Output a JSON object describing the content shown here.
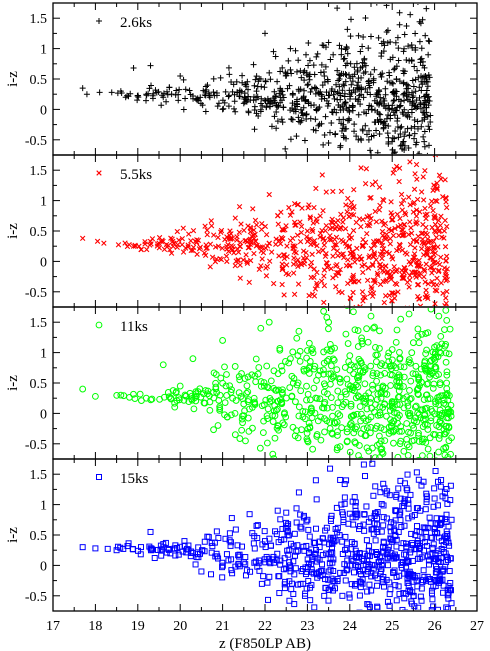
{
  "chart_data": [
    {
      "type": "scatter",
      "marker": "plus",
      "color": "#000000",
      "legend": "2.6ks",
      "ylabel": "i-z",
      "xlim": [
        17,
        27
      ],
      "ylim": [
        -0.75,
        1.75
      ],
      "yticks": [
        -0.5,
        0,
        0.5,
        1,
        1.5
      ],
      "series": [
        {
          "name": "2.6ks",
          "trend": [
            [
              17.7,
              0.28
            ],
            [
              19.0,
              0.25
            ],
            [
              20.5,
              0.22
            ],
            [
              22.0,
              0.21
            ],
            [
              24.0,
              0.2
            ],
            [
              26.0,
              0.18
            ]
          ],
          "scatter": [
            [
              17.7,
              0.0
            ],
            [
              18.1,
              0.0
            ],
            [
              18.7,
              0.05
            ],
            [
              22.0,
              0.2
            ],
            [
              23.0,
              0.35
            ],
            [
              24.0,
              0.5
            ],
            [
              25.0,
              0.6
            ],
            [
              26.0,
              0.8
            ]
          ],
          "x": [
            17.7,
            17.8,
            18.1,
            18.6,
            18.9,
            19.2,
            19.3,
            19.6,
            20.0,
            20.3,
            20.7,
            21.0,
            21.2,
            21.5,
            21.8,
            22.0,
            22.1,
            22.2,
            22.4,
            22.6,
            22.8,
            23.0,
            23.2,
            23.4,
            23.5,
            23.6,
            23.8,
            24.0,
            24.2,
            24.3,
            24.5,
            24.7,
            24.8,
            24.9,
            25.1,
            25.3,
            25.4,
            25.6,
            25.8,
            25.9
          ],
          "y": [
            0.35,
            0.25,
            0.28,
            0.3,
            0.68,
            0.25,
            0.72,
            0.2,
            0.55,
            0.22,
            0.2,
            0.0,
            0.45,
            0.1,
            0.3,
            1.25,
            0.6,
            0.95,
            0.15,
            1.0,
            -0.2,
            0.4,
            -0.35,
            0.55,
            1.1,
            -0.05,
            0.9,
            0.25,
            -0.5,
            0.7,
            1.2,
            0.1,
            -0.3,
            1.3,
            0.5,
            -0.6,
            0.8,
            -0.2,
            0.45,
            -0.1
          ]
        }
      ]
    },
    {
      "type": "scatter",
      "marker": "x",
      "color": "#ff0000",
      "legend": "5.5ks",
      "ylabel": "i-z",
      "xlim": [
        17,
        27
      ],
      "ylim": [
        -0.75,
        1.75
      ],
      "yticks": [
        -0.5,
        0,
        0.5,
        1,
        1.5
      ],
      "series": [
        {
          "name": "5.5ks",
          "trend": [
            [
              17.7,
              0.38
            ],
            [
              18.5,
              0.28
            ],
            [
              20.0,
              0.25
            ],
            [
              22.0,
              0.22
            ],
            [
              24.0,
              0.2
            ],
            [
              26.3,
              0.15
            ]
          ],
          "scatter": [
            [
              17.7,
              0.0
            ],
            [
              18.5,
              0.02
            ],
            [
              20.0,
              0.1
            ],
            [
              21.0,
              0.2
            ],
            [
              22.5,
              0.35
            ],
            [
              24.0,
              0.5
            ],
            [
              25.5,
              0.6
            ],
            [
              26.4,
              0.7
            ]
          ],
          "x": [
            17.7,
            18.2,
            18.9,
            19.5,
            20.2,
            20.6,
            21.1,
            21.4,
            21.8,
            22.1,
            22.3,
            22.5,
            22.7,
            23.0,
            23.2,
            23.4,
            23.6,
            23.9,
            24.1,
            24.3,
            24.5,
            24.8,
            25.0,
            25.3,
            25.5,
            25.8,
            26.0,
            26.3
          ],
          "y": [
            0.38,
            0.3,
            0.25,
            0.3,
            0.45,
            0.1,
            0.0,
            0.9,
            0.6,
            1.1,
            0.75,
            -0.2,
            0.95,
            0.5,
            1.2,
            -0.4,
            1.15,
            0.3,
            0.9,
            -0.5,
            1.05,
            0.6,
            -0.65,
            0.8,
            0.35,
            -0.55,
            0.5,
            -0.3
          ]
        }
      ]
    },
    {
      "type": "scatter",
      "marker": "circle",
      "color": "#00ff00",
      "legend": "11ks",
      "ylabel": "i-z",
      "xlim": [
        17,
        27
      ],
      "ylim": [
        -0.75,
        1.75
      ],
      "yticks": [
        -0.5,
        0,
        0.5,
        1,
        1.5
      ],
      "series": [
        {
          "name": "11ks",
          "trend": [
            [
              17.7,
              0.38
            ],
            [
              18.5,
              0.3
            ],
            [
              20.0,
              0.26
            ],
            [
              22.0,
              0.22
            ],
            [
              24.0,
              0.18
            ],
            [
              26.4,
              0.15
            ]
          ],
          "scatter": [
            [
              17.7,
              0.0
            ],
            [
              18.5,
              0.02
            ],
            [
              20.0,
              0.1
            ],
            [
              21.0,
              0.3
            ],
            [
              22.0,
              0.45
            ],
            [
              23.0,
              0.55
            ],
            [
              24.5,
              0.6
            ],
            [
              26.4,
              0.65
            ]
          ],
          "x": [
            17.7,
            18.0,
            18.6,
            19.2,
            19.6,
            20.0,
            20.3,
            20.7,
            21.0,
            21.3,
            21.6,
            21.9,
            22.1,
            22.3,
            22.6,
            22.8,
            23.0,
            23.3,
            23.5,
            23.7,
            24.0,
            24.2,
            24.5,
            24.7,
            25.0,
            25.2,
            25.4,
            25.7,
            25.9,
            26.1,
            26.4
          ],
          "y": [
            0.4,
            0.28,
            0.3,
            0.25,
            0.8,
            0.45,
            0.9,
            0.05,
            1.2,
            -0.35,
            0.6,
            1.4,
            1.5,
            -0.2,
            0.9,
            1.35,
            -0.45,
            0.7,
            1.5,
            -0.6,
            0.95,
            1.1,
            1.6,
            -0.5,
            1.05,
            1.55,
            -0.55,
            1.3,
            0.7,
            1.6,
            -0.4
          ]
        }
      ]
    },
    {
      "type": "scatter",
      "marker": "square",
      "color": "#0000ff",
      "legend": "15ks",
      "ylabel": "i-z",
      "xlabel": "z (F850LP AB)",
      "xlim": [
        17,
        27
      ],
      "xticks": [
        17,
        18,
        19,
        20,
        21,
        22,
        23,
        24,
        25,
        26,
        27
      ],
      "ylim": [
        -0.75,
        1.75
      ],
      "yticks": [
        -0.5,
        0,
        0.5,
        1,
        1.5
      ],
      "series": [
        {
          "name": "15ks",
          "trend": [
            [
              17.7,
              0.3
            ],
            [
              18.5,
              0.28
            ],
            [
              20.0,
              0.25
            ],
            [
              22.0,
              0.22
            ],
            [
              24.0,
              0.2
            ],
            [
              26.4,
              0.18
            ]
          ],
          "scatter": [
            [
              17.7,
              0.0
            ],
            [
              18.5,
              0.02
            ],
            [
              19.5,
              0.06
            ],
            [
              20.5,
              0.12
            ],
            [
              21.5,
              0.25
            ],
            [
              22.5,
              0.4
            ],
            [
              24.0,
              0.55
            ],
            [
              26.4,
              0.65
            ]
          ],
          "x": [
            17.7,
            18.0,
            18.5,
            19.3,
            19.6,
            20.1,
            20.5,
            20.9,
            21.2,
            21.5,
            21.8,
            22.0,
            22.3,
            22.5,
            22.8,
            23.0,
            23.2,
            23.5,
            23.8,
            24.0,
            24.3,
            24.6,
            24.9,
            25.1,
            25.3,
            25.5,
            25.8,
            26.0,
            26.2,
            26.4
          ],
          "y": [
            0.3,
            0.28,
            0.25,
            0.55,
            0.35,
            0.4,
            -0.1,
            0.45,
            0.1,
            0.05,
            0.65,
            0.4,
            0.9,
            -0.05,
            1.2,
            0.75,
            1.4,
            -0.4,
            1.0,
            0.85,
            -0.3,
            1.3,
            -0.6,
            0.9,
            1.35,
            -0.5,
            0.55,
            1.1,
            -0.45,
            0.75
          ]
        }
      ]
    }
  ]
}
